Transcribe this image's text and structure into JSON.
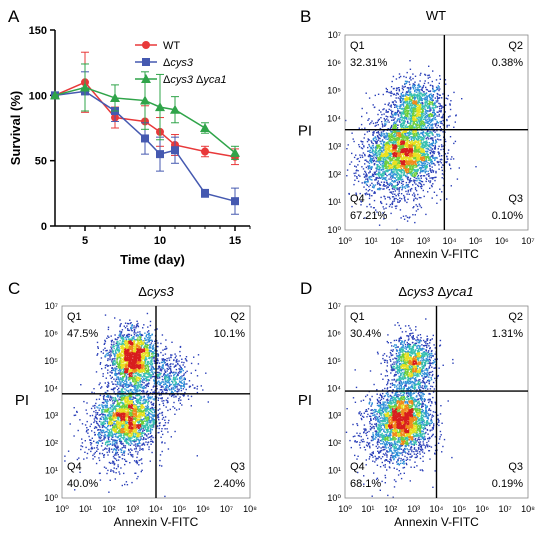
{
  "panels": {
    "A": {
      "letter": "A"
    },
    "B": {
      "letter": "B"
    },
    "C": {
      "letter": "C"
    },
    "D": {
      "letter": "D"
    }
  },
  "chart_data": [
    {
      "type": "line",
      "panel": "A",
      "xlabel": "Time (day)",
      "ylabel": "Survival (%)",
      "xlim": [
        3,
        16
      ],
      "ylim": [
        0,
        150
      ],
      "x_ticks": [
        5,
        10,
        15
      ],
      "y_ticks": [
        0,
        50,
        100,
        150
      ],
      "legend_position": "top-center",
      "series": [
        {
          "name": "WT",
          "name_parts": [
            {
              "t": "WT",
              "i": false
            }
          ],
          "color": "#e8393a",
          "marker": "circle",
          "x": [
            3,
            5,
            7,
            9,
            10,
            11,
            13,
            15
          ],
          "y": [
            100,
            110,
            83,
            80,
            72,
            62,
            57,
            53
          ],
          "err": [
            0,
            23,
            8,
            12,
            11,
            8,
            4,
            6
          ]
        },
        {
          "name": "Δcys3",
          "name_parts": [
            {
              "t": "Δ",
              "i": false
            },
            {
              "t": "cys3",
              "i": true
            }
          ],
          "color": "#4559b0",
          "marker": "square",
          "x": [
            3,
            5,
            7,
            9,
            10,
            11,
            13,
            15
          ],
          "y": [
            100,
            103,
            88,
            67,
            55,
            58,
            25,
            19
          ],
          "err": [
            0,
            15,
            8,
            12,
            13,
            10,
            3,
            10
          ]
        },
        {
          "name": "Δcys3 Δyca1",
          "name_parts": [
            {
              "t": "Δ",
              "i": false
            },
            {
              "t": "cys3",
              "i": true
            },
            {
              "t": " Δ",
              "i": false
            },
            {
              "t": "yca1",
              "i": true
            }
          ],
          "color": "#2fa449",
          "marker": "triangle",
          "x": [
            3,
            5,
            7,
            9,
            10,
            11,
            13,
            15
          ],
          "y": [
            100,
            106,
            98,
            96,
            91,
            89,
            75,
            56
          ],
          "err": [
            0,
            18,
            10,
            22,
            25,
            10,
            4,
            5
          ]
        }
      ]
    },
    {
      "type": "scatter",
      "panel": "B",
      "title": "WT",
      "title_parts": [
        {
          "t": "WT",
          "i": false
        }
      ],
      "xlabel": "Annexin V-FITC",
      "ylabel": "PI",
      "x_ticks": [
        "10⁰",
        "10¹",
        "10²",
        "10³",
        "10⁴",
        "10⁵",
        "10⁶",
        "10⁷"
      ],
      "y_ticks": [
        "10⁰",
        "10¹",
        "10²",
        "10³",
        "10⁴",
        "10⁵",
        "10⁶",
        "10⁷"
      ],
      "quadrants": {
        "Q1": "32.31%",
        "Q2": "0.38%",
        "Q3": "0.10%",
        "Q4": "67.21%"
      },
      "gate": {
        "x": 3.8,
        "y": 3.6
      },
      "clusters": [
        {
          "cx": 2.7,
          "cy": 4.3,
          "sx": 0.55,
          "sy": 0.55,
          "n": 1300
        },
        {
          "cx": 2.2,
          "cy": 2.8,
          "sx": 0.65,
          "sy": 0.55,
          "n": 2200
        },
        {
          "cx": 1.8,
          "cy": 2.1,
          "sx": 0.8,
          "sy": 0.7,
          "n": 700
        }
      ]
    },
    {
      "type": "scatter",
      "panel": "C",
      "title": "Δcys3",
      "title_parts": [
        {
          "t": "Δ",
          "i": false
        },
        {
          "t": "cys3",
          "i": true
        }
      ],
      "xlabel": "Annexin V-FITC",
      "ylabel": "PI",
      "x_ticks": [
        "10⁰",
        "10¹",
        "10²",
        "10³",
        "10⁴",
        "10⁵",
        "10⁶",
        "10⁷",
        "10⁸"
      ],
      "y_ticks": [
        "10⁰",
        "10¹",
        "10²",
        "10³",
        "10⁴",
        "10⁵",
        "10⁶",
        "10⁷"
      ],
      "quadrants": {
        "Q1": "47.5%",
        "Q2": "10.1%",
        "Q3": "2.40%",
        "Q4": "40.0%"
      },
      "gate": {
        "x": 4.0,
        "y": 3.8
      },
      "clusters": [
        {
          "cx": 3.0,
          "cy": 5.1,
          "sx": 0.5,
          "sy": 0.5,
          "n": 2000
        },
        {
          "cx": 2.8,
          "cy": 3.0,
          "sx": 0.6,
          "sy": 0.55,
          "n": 1800
        },
        {
          "cx": 4.6,
          "cy": 4.3,
          "sx": 0.5,
          "sy": 0.45,
          "n": 450
        },
        {
          "cx": 2.3,
          "cy": 2.2,
          "sx": 0.8,
          "sy": 0.7,
          "n": 500
        }
      ]
    },
    {
      "type": "scatter",
      "panel": "D",
      "title": "Δcys3 Δyca1",
      "title_parts": [
        {
          "t": "Δ",
          "i": false
        },
        {
          "t": "cys3",
          "i": true
        },
        {
          "t": " Δ",
          "i": false
        },
        {
          "t": "yca1",
          "i": true
        }
      ],
      "xlabel": "Annexin V-FITC",
      "ylabel": "PI",
      "x_ticks": [
        "10⁰",
        "10¹",
        "10²",
        "10³",
        "10⁴",
        "10⁵",
        "10⁶",
        "10⁷",
        "10⁸"
      ],
      "y_ticks": [
        "10⁰",
        "10¹",
        "10²",
        "10³",
        "10⁴",
        "10⁵",
        "10⁶",
        "10⁷"
      ],
      "quadrants": {
        "Q1": "30.4%",
        "Q2": "1.31%",
        "Q3": "0.19%",
        "Q4": "68.1%"
      },
      "gate": {
        "x": 4.0,
        "y": 3.9
      },
      "clusters": [
        {
          "cx": 2.9,
          "cy": 4.9,
          "sx": 0.5,
          "sy": 0.5,
          "n": 1200
        },
        {
          "cx": 2.5,
          "cy": 2.9,
          "sx": 0.6,
          "sy": 0.55,
          "n": 2200
        },
        {
          "cx": 2.0,
          "cy": 2.2,
          "sx": 0.8,
          "sy": 0.7,
          "n": 600
        }
      ]
    }
  ]
}
